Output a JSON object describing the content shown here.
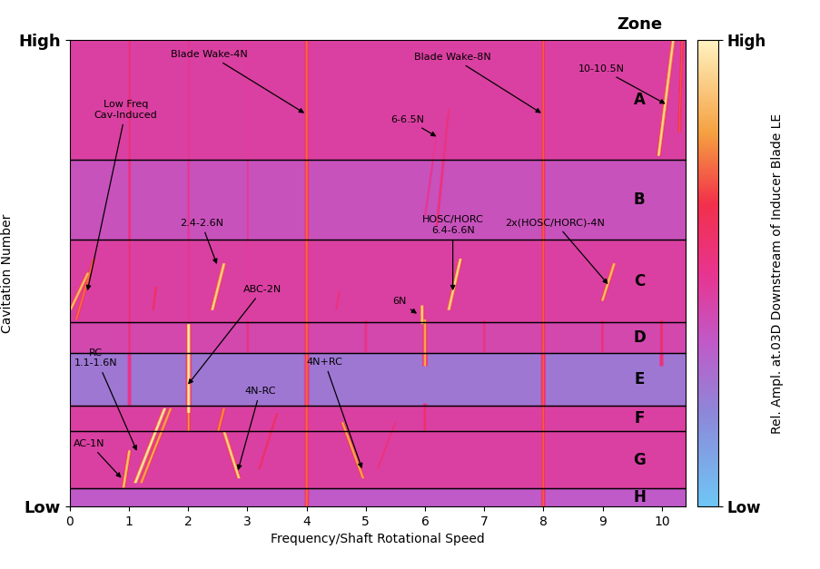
{
  "chart_data": {
    "type": "spectrogram",
    "xlabel": "Frequency/Shaft Rotational Speed",
    "ylabel": "Cavitation Number",
    "xlim": [
      0,
      10.4
    ],
    "xticks": [
      0,
      1,
      2,
      3,
      4,
      5,
      6,
      7,
      8,
      9,
      10
    ],
    "ylim": [
      0,
      1
    ],
    "yticks": [
      {
        "value": 0,
        "label": "Low"
      },
      {
        "value": 1,
        "label": "High"
      }
    ],
    "colorbar": {
      "label": "Rel. Ampl. at.03D Downstream of Inducer Blade LE",
      "range": [
        0,
        1
      ],
      "ticks": [
        {
          "value": 0,
          "label": "Low"
        },
        {
          "value": 1,
          "label": "High"
        }
      ]
    },
    "zone_header": "Zone",
    "zones": [
      {
        "label": "A",
        "range": [
          0.743,
          1
        ],
        "background": 0.45
      },
      {
        "label": "B",
        "range": [
          0.571,
          0.743
        ],
        "background": 0.38
      },
      {
        "label": "C",
        "range": [
          0.394,
          0.571
        ],
        "background": 0.45
      },
      {
        "label": "D",
        "range": [
          0.328,
          0.394
        ],
        "background": 0.42
      },
      {
        "label": "E",
        "range": [
          0.215,
          0.328
        ],
        "background": 0.25
      },
      {
        "label": "F",
        "range": [
          0.162,
          0.215
        ],
        "background": 0.45
      },
      {
        "label": "G",
        "range": [
          0.038,
          0.162
        ],
        "background": 0.45
      },
      {
        "label": "H",
        "range": [
          0,
          0.038
        ],
        "background": 0.35
      }
    ],
    "lines": [
      {
        "x": [
          4,
          4
        ],
        "y": [
          0,
          1
        ],
        "amplitude": 0.75
      },
      {
        "x": [
          8,
          8
        ],
        "y": [
          0,
          1
        ],
        "amplitude": 0.72
      },
      {
        "x": [
          1,
          1
        ],
        "y": [
          0.215,
          1
        ],
        "amplitude": 0.55
      },
      {
        "x": [
          2,
          2
        ],
        "y": [
          0.33,
          1
        ],
        "amplitude": 0.5
      },
      {
        "x": [
          3,
          3
        ],
        "y": [
          0.4,
          1
        ],
        "amplitude": 0.48
      },
      {
        "x": [
          9.95,
          10.2
        ],
        "y": [
          0.75,
          1
        ],
        "amplitude": 0.95
      },
      {
        "x": [
          10.3,
          10.35
        ],
        "y": [
          0.8,
          1
        ],
        "amplitude": 0.7
      },
      {
        "x": [
          6.2,
          6.4
        ],
        "y": [
          0.6,
          0.85
        ],
        "amplitude": 0.55
      },
      {
        "x": [
          6.0,
          6.2
        ],
        "y": [
          0.62,
          0.8
        ],
        "amplitude": 0.5
      },
      {
        "x": [
          0.0,
          0.3
        ],
        "y": [
          0.42,
          0.5
        ],
        "amplitude": 0.9
      },
      {
        "x": [
          0.1,
          0.4
        ],
        "y": [
          0.4,
          0.53
        ],
        "amplitude": 0.75
      },
      {
        "x": [
          2.4,
          2.6
        ],
        "y": [
          0.42,
          0.52
        ],
        "amplitude": 0.95
      },
      {
        "x": [
          6.4,
          6.6
        ],
        "y": [
          0.42,
          0.53
        ],
        "amplitude": 0.95
      },
      {
        "x": [
          9.0,
          9.2
        ],
        "y": [
          0.44,
          0.52
        ],
        "amplitude": 0.9
      },
      {
        "x": [
          5.95,
          5.95
        ],
        "y": [
          0.39,
          0.43
        ],
        "amplitude": 0.95
      },
      {
        "x": [
          1.4,
          1.45
        ],
        "y": [
          0.42,
          0.47
        ],
        "amplitude": 0.6
      },
      {
        "x": [
          4.5,
          4.55
        ],
        "y": [
          0.42,
          0.46
        ],
        "amplitude": 0.55
      },
      {
        "x": [
          2,
          2
        ],
        "y": [
          0.2,
          0.39
        ],
        "amplitude": 1.0
      },
      {
        "x": [
          6,
          6
        ],
        "y": [
          0.3,
          0.4
        ],
        "amplitude": 0.85
      },
      {
        "x": [
          10,
          10
        ],
        "y": [
          0.3,
          0.4
        ],
        "amplitude": 0.6
      },
      {
        "x": [
          1,
          1
        ],
        "y": [
          0.33,
          0.4
        ],
        "amplitude": 0.55
      },
      {
        "x": [
          3,
          3
        ],
        "y": [
          0.33,
          0.4
        ],
        "amplitude": 0.55
      },
      {
        "x": [
          5,
          5
        ],
        "y": [
          0.33,
          0.4
        ],
        "amplitude": 0.55
      },
      {
        "x": [
          7,
          7
        ],
        "y": [
          0.33,
          0.4
        ],
        "amplitude": 0.55
      },
      {
        "x": [
          9,
          9
        ],
        "y": [
          0.33,
          0.4
        ],
        "amplitude": 0.55
      },
      {
        "x": [
          1.1,
          1.6
        ],
        "y": [
          0.05,
          0.21
        ],
        "amplitude": 1.0
      },
      {
        "x": [
          1.2,
          1.7
        ],
        "y": [
          0.05,
          0.21
        ],
        "amplitude": 0.85
      },
      {
        "x": [
          0.9,
          1.0
        ],
        "y": [
          0.04,
          0.12
        ],
        "amplitude": 0.9
      },
      {
        "x": [
          2,
          2
        ],
        "y": [
          0.16,
          0.21
        ],
        "amplitude": 0.8
      },
      {
        "x": [
          2.5,
          2.6
        ],
        "y": [
          0.16,
          0.21
        ],
        "amplitude": 0.8
      },
      {
        "x": [
          2.85,
          2.6
        ],
        "y": [
          0.06,
          0.16
        ],
        "amplitude": 0.95
      },
      {
        "x": [
          4.95,
          4.6
        ],
        "y": [
          0.06,
          0.18
        ],
        "amplitude": 0.85
      },
      {
        "x": [
          3.2,
          3.5
        ],
        "y": [
          0.08,
          0.2
        ],
        "amplitude": 0.6
      },
      {
        "x": [
          5.2,
          5.5
        ],
        "y": [
          0.08,
          0.18
        ],
        "amplitude": 0.55
      },
      {
        "x": [
          6,
          6
        ],
        "y": [
          0.16,
          0.22
        ],
        "amplitude": 0.6
      }
    ],
    "annotations": [
      {
        "text": "Blade Wake-4N",
        "x": 4,
        "y": 0.84
      },
      {
        "text": "Blade Wake-8N",
        "x": 8,
        "y": 0.84
      },
      {
        "text": "10-10.5N",
        "x": 10.1,
        "y": 0.86
      },
      {
        "text": "6-6.5N",
        "x": 6.23,
        "y": 0.79
      },
      {
        "text": "Low Freq\nCav-Induced",
        "x": 0.29,
        "y": 0.457
      },
      {
        "text": "2.4-2.6N",
        "x": 2.5,
        "y": 0.514
      },
      {
        "text": "HOSC/HORC\n6.4-6.6N",
        "x": 6.47,
        "y": 0.457
      },
      {
        "text": "2x(HOSC/HORC)-4N",
        "x": 9.12,
        "y": 0.472
      },
      {
        "text": "ABC-2N",
        "x": 1.97,
        "y": 0.257
      },
      {
        "text": "6N",
        "x": 5.9,
        "y": 0.41
      },
      {
        "text": "RC\n1.1-1.6N",
        "x": 1.15,
        "y": 0.114
      },
      {
        "text": "4N-RC",
        "x": 2.83,
        "y": 0.072
      },
      {
        "text": "4N+RC",
        "x": 4.95,
        "y": 0.076
      },
      {
        "text": "AC-1N",
        "x": 0.9,
        "y": 0.057
      }
    ]
  }
}
